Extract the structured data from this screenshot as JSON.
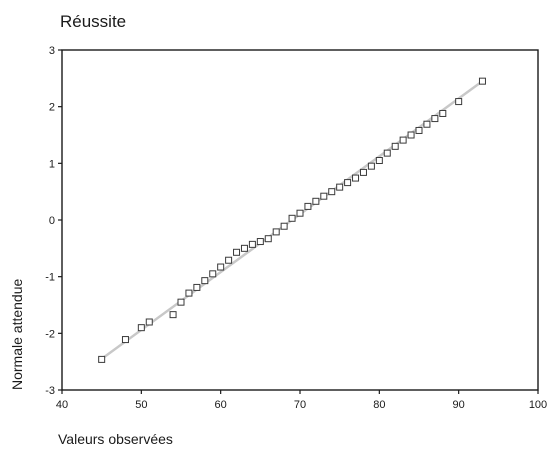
{
  "chart_data": {
    "type": "scatter",
    "title": "Réussite",
    "xlabel": "Valeurs observées",
    "ylabel": "Normale attendue",
    "xlim": [
      40,
      100
    ],
    "ylim": [
      -3,
      3
    ],
    "xticks": [
      40,
      50,
      60,
      70,
      80,
      90,
      100
    ],
    "yticks": [
      3,
      2,
      1,
      0,
      -1,
      -2,
      -3
    ],
    "grid": false,
    "reference_line": {
      "x": [
        45,
        93
      ],
      "y": [
        -2.45,
        2.45
      ]
    },
    "series": [
      {
        "x": [
          45,
          48,
          50,
          51,
          54,
          55,
          56,
          57,
          58,
          59,
          60,
          61,
          62,
          63,
          64,
          65,
          66,
          67,
          68,
          69,
          70,
          71,
          72,
          73,
          74,
          75,
          76,
          77,
          78,
          79,
          80,
          81,
          82,
          83,
          84,
          85,
          86,
          87,
          88,
          90,
          93
        ],
        "y": [
          -2.46,
          -2.11,
          -1.9,
          -1.8,
          -1.67,
          -1.45,
          -1.29,
          -1.19,
          -1.07,
          -0.95,
          -0.83,
          -0.71,
          -0.57,
          -0.5,
          -0.43,
          -0.38,
          -0.33,
          -0.21,
          -0.11,
          0.03,
          0.12,
          0.24,
          0.33,
          0.42,
          0.5,
          0.58,
          0.66,
          0.74,
          0.84,
          0.95,
          1.05,
          1.18,
          1.3,
          1.41,
          1.5,
          1.58,
          1.69,
          1.79,
          1.88,
          2.09,
          2.45
        ]
      }
    ]
  }
}
